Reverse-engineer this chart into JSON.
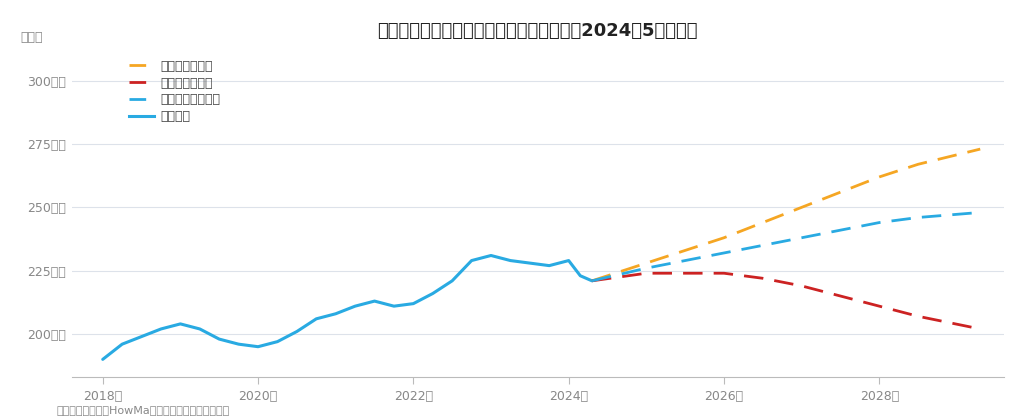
{
  "title": "難波駅周辺の中古マンションの価格動向（2024年5月時点）",
  "ylabel": "坪単価",
  "footnote": "売出し事例を元にHowMa運営元のコラビットが集計",
  "bg_color": "#ffffff",
  "grid_color": "#dde2ea",
  "yticks": [
    200,
    225,
    250,
    275,
    300
  ],
  "ylim": [
    183,
    312
  ],
  "xlim_min": 2017.6,
  "xlim_max": 2029.6,
  "xticks": [
    2018,
    2020,
    2022,
    2024,
    2026,
    2028
  ],
  "past_data": {
    "x": [
      2018.0,
      2018.25,
      2018.5,
      2018.75,
      2019.0,
      2019.25,
      2019.5,
      2019.75,
      2020.0,
      2020.25,
      2020.5,
      2020.75,
      2021.0,
      2021.25,
      2021.5,
      2021.75,
      2022.0,
      2022.25,
      2022.5,
      2022.75,
      2023.0,
      2023.25,
      2023.5,
      2023.75,
      2024.0,
      2024.15,
      2024.3
    ],
    "y": [
      190,
      196,
      199,
      202,
      204,
      202,
      198,
      196,
      195,
      197,
      201,
      206,
      208,
      211,
      213,
      211,
      212,
      216,
      221,
      229,
      231,
      229,
      228,
      227,
      229,
      223,
      221
    ],
    "color": "#29aae2",
    "linewidth": 2.2
  },
  "scenarios": [
    {
      "name": "グッドシナリオ",
      "x": [
        2024.3,
        2025.0,
        2025.5,
        2026.0,
        2026.5,
        2027.0,
        2027.5,
        2028.0,
        2028.5,
        2029.3
      ],
      "y": [
        221,
        228,
        233,
        238,
        244,
        250,
        256,
        262,
        267,
        273
      ],
      "color": "#f5a623",
      "linewidth": 2.0
    },
    {
      "name": "バッドシナリオ",
      "x": [
        2024.3,
        2025.0,
        2025.5,
        2026.0,
        2026.5,
        2027.0,
        2027.5,
        2028.0,
        2028.5,
        2029.3
      ],
      "y": [
        221,
        224,
        224,
        224,
        222,
        219,
        215,
        211,
        207,
        202
      ],
      "color": "#cc2222",
      "linewidth": 2.0
    },
    {
      "name": "ノーマルシナリオ",
      "x": [
        2024.3,
        2025.0,
        2025.5,
        2026.0,
        2026.5,
        2027.0,
        2027.5,
        2028.0,
        2028.5,
        2029.3
      ],
      "y": [
        221,
        226,
        229,
        232,
        235,
        238,
        241,
        244,
        246,
        248
      ],
      "color": "#29aae2",
      "linewidth": 2.0
    }
  ],
  "legend_items": [
    {
      "label": "グッドシナリオ",
      "color": "#f5a623",
      "linestyle": "--"
    },
    {
      "label": "バッドシナリオ",
      "color": "#cc2222",
      "linestyle": "--"
    },
    {
      "label": "ノーマルシナリオ",
      "color": "#29aae2",
      "linestyle": "--"
    },
    {
      "label": "過去推移",
      "color": "#29aae2",
      "linestyle": "-"
    }
  ]
}
